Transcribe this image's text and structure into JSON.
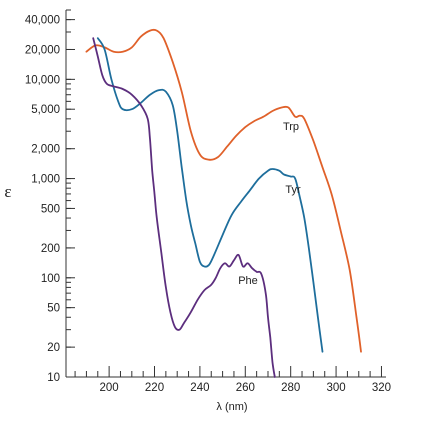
{
  "chart_data": {
    "type": "line",
    "xlabel": "λ (nm)",
    "ylabel": "ε",
    "xlim": [
      181,
      322
    ],
    "ylim": [
      10,
      50000
    ],
    "y_scale": "log",
    "grid": false,
    "x_ticks": [
      200,
      220,
      240,
      260,
      280,
      300,
      320
    ],
    "y_ticks": [
      {
        "value": 10,
        "label": "10"
      },
      {
        "value": 20,
        "label": "20"
      },
      {
        "value": 50,
        "label": "50"
      },
      {
        "value": 100,
        "label": "100"
      },
      {
        "value": 200,
        "label": "200"
      },
      {
        "value": 500,
        "label": "500"
      },
      {
        "value": 1000,
        "label": "1,000"
      },
      {
        "value": 2000,
        "label": "2,000"
      },
      {
        "value": 5000,
        "label": "5,000"
      },
      {
        "value": 10000,
        "label": "10,000"
      },
      {
        "value": 20000,
        "label": "20,000"
      },
      {
        "value": 40000,
        "label": "40,000"
      }
    ],
    "series": [
      {
        "name": "Trp",
        "color": "#e0612a",
        "points": [
          [
            190,
            19000
          ],
          [
            194,
            22000
          ],
          [
            198,
            21000
          ],
          [
            202,
            19000
          ],
          [
            206,
            19000
          ],
          [
            210,
            21000
          ],
          [
            214,
            27000
          ],
          [
            218,
            31000
          ],
          [
            221,
            31000
          ],
          [
            224,
            26000
          ],
          [
            228,
            15000
          ],
          [
            232,
            7500
          ],
          [
            236,
            3000
          ],
          [
            240,
            1750
          ],
          [
            244,
            1550
          ],
          [
            248,
            1650
          ],
          [
            252,
            2100
          ],
          [
            256,
            2700
          ],
          [
            260,
            3300
          ],
          [
            264,
            3800
          ],
          [
            268,
            4200
          ],
          [
            272,
            4800
          ],
          [
            276,
            5200
          ],
          [
            279,
            5200
          ],
          [
            282,
            4200
          ],
          [
            284,
            4300
          ],
          [
            286,
            4000
          ],
          [
            290,
            2400
          ],
          [
            294,
            1300
          ],
          [
            298,
            700
          ],
          [
            302,
            300
          ],
          [
            306,
            120
          ],
          [
            309,
            40
          ],
          [
            311,
            18
          ]
        ]
      },
      {
        "name": "Tyr",
        "color": "#1e6e9c",
        "points": [
          [
            195,
            26000
          ],
          [
            198,
            20000
          ],
          [
            201,
            10000
          ],
          [
            204,
            6000
          ],
          [
            206,
            5000
          ],
          [
            210,
            5000
          ],
          [
            214,
            5800
          ],
          [
            218,
            7000
          ],
          [
            222,
            7800
          ],
          [
            225,
            7500
          ],
          [
            228,
            5500
          ],
          [
            230,
            3000
          ],
          [
            232,
            1300
          ],
          [
            234,
            600
          ],
          [
            236,
            340
          ],
          [
            238,
            220
          ],
          [
            240,
            145
          ],
          [
            242,
            130
          ],
          [
            244,
            135
          ],
          [
            246,
            165
          ],
          [
            250,
            270
          ],
          [
            254,
            430
          ],
          [
            258,
            580
          ],
          [
            262,
            760
          ],
          [
            266,
            1000
          ],
          [
            270,
            1200
          ],
          [
            272,
            1250
          ],
          [
            275,
            1200
          ],
          [
            277,
            1100
          ],
          [
            280,
            1050
          ],
          [
            282,
            1000
          ],
          [
            284,
            650
          ],
          [
            286,
            400
          ],
          [
            288,
            200
          ],
          [
            290,
            90
          ],
          [
            292,
            40
          ],
          [
            294,
            18
          ]
        ]
      },
      {
        "name": "Phe",
        "color": "#5c2e7e",
        "points": [
          [
            193,
            26000
          ],
          [
            195,
            17000
          ],
          [
            197,
            11000
          ],
          [
            199,
            9000
          ],
          [
            202,
            8500
          ],
          [
            206,
            8000
          ],
          [
            210,
            7000
          ],
          [
            214,
            5500
          ],
          [
            217,
            4000
          ],
          [
            218,
            2500
          ],
          [
            219,
            1200
          ],
          [
            220,
            700
          ],
          [
            221,
            400
          ],
          [
            223,
            180
          ],
          [
            225,
            80
          ],
          [
            227,
            45
          ],
          [
            229,
            32
          ],
          [
            231,
            30
          ],
          [
            233,
            35
          ],
          [
            236,
            45
          ],
          [
            239,
            60
          ],
          [
            242,
            75
          ],
          [
            245,
            85
          ],
          [
            247,
            100
          ],
          [
            249,
            125
          ],
          [
            251,
            140
          ],
          [
            253,
            130
          ],
          [
            255,
            150
          ],
          [
            257,
            170
          ],
          [
            259,
            130
          ],
          [
            261,
            140
          ],
          [
            263,
            125
          ],
          [
            265,
            115
          ],
          [
            267,
            110
          ],
          [
            269,
            70
          ],
          [
            270,
            40
          ],
          [
            271,
            25
          ],
          [
            272,
            14
          ],
          [
            273,
            10
          ]
        ]
      }
    ]
  }
}
